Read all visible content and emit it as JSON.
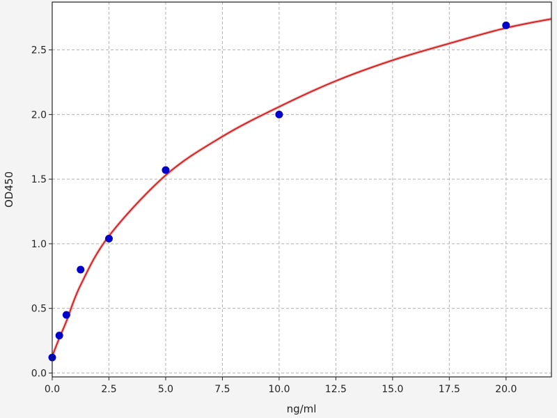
{
  "chart_data": {
    "type": "scatter",
    "title": "",
    "xlabel": "ng/ml",
    "ylabel": "OD450",
    "xlim": [
      0,
      22
    ],
    "ylim": [
      -0.03,
      2.87
    ],
    "grid": true,
    "xticks": [
      "0.0",
      "2.5",
      "5.0",
      "7.5",
      "10.0",
      "12.5",
      "15.0",
      "17.5",
      "20.0"
    ],
    "yticks": [
      "0.0",
      "0.5",
      "1.0",
      "1.5",
      "2.0",
      "2.5"
    ],
    "points": {
      "x": [
        0,
        0.3125,
        0.625,
        1.25,
        2.5,
        5,
        10,
        20
      ],
      "y": [
        0.12,
        0.29,
        0.45,
        0.8,
        1.04,
        1.57,
        2.0,
        2.69
      ],
      "color": "#0000cc"
    },
    "fit_curve": {
      "x": [
        0,
        0.3125,
        0.625,
        1.25,
        2.5,
        5,
        7.5,
        10,
        12.5,
        15,
        17.5,
        20,
        22
      ],
      "y": [
        0.13,
        0.27,
        0.4,
        0.68,
        1.06,
        1.53,
        1.83,
        2.06,
        2.26,
        2.42,
        2.55,
        2.67,
        2.74
      ],
      "color": "#cc2222"
    }
  }
}
